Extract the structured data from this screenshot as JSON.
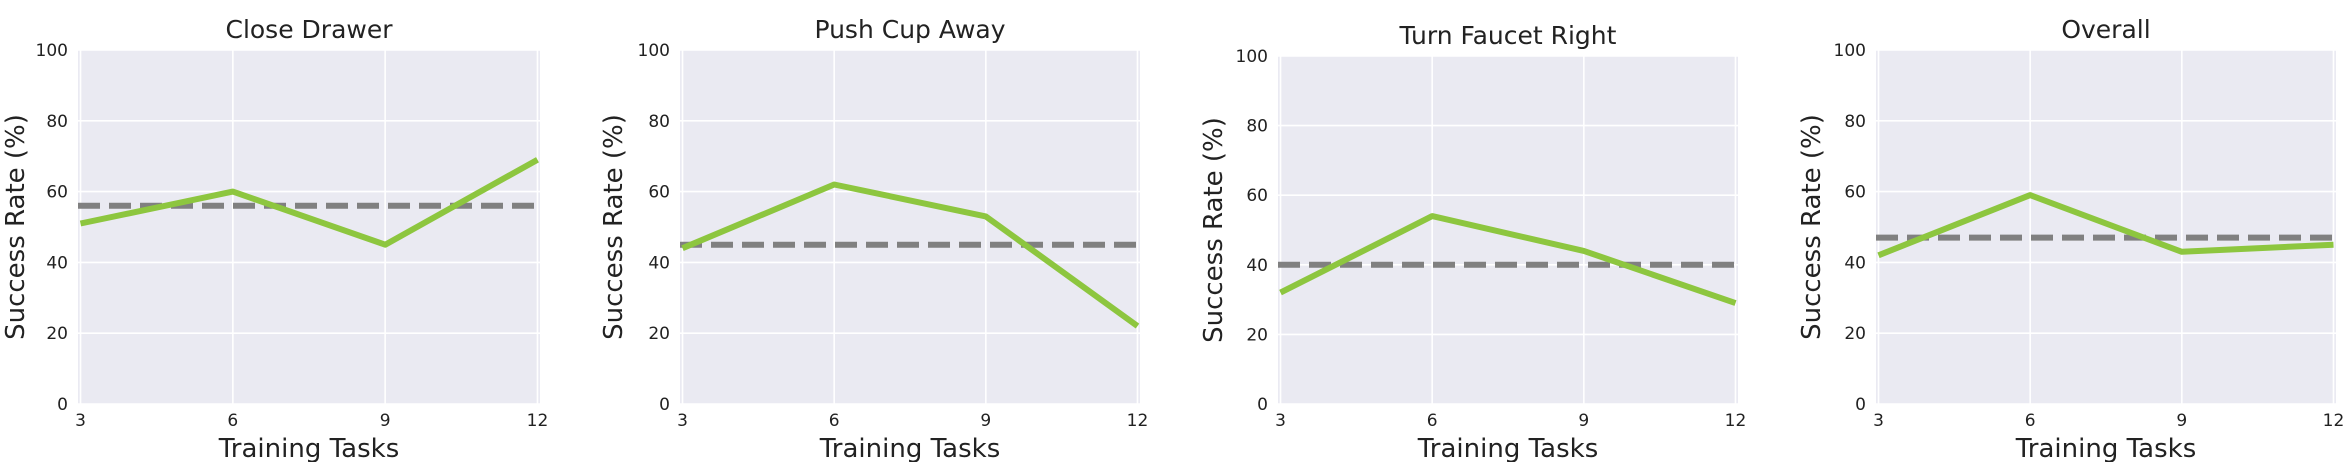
{
  "chart_data": [
    {
      "type": "line",
      "title": "Close Drawer",
      "xlabel": "Training Tasks",
      "ylabel": "Success Rate (%)",
      "x": [
        3,
        6,
        9,
        12
      ],
      "xticks": [
        "3",
        "6",
        "9",
        "12"
      ],
      "yticks": [
        "0",
        "20",
        "40",
        "60",
        "80",
        "100"
      ],
      "ylim": [
        0,
        100
      ],
      "grid": true,
      "series": [
        {
          "values": [
            51,
            60,
            45,
            69
          ],
          "color": "#8dc63f",
          "style": "solid"
        },
        {
          "values": [
            56,
            56,
            56,
            56
          ],
          "color": "#808080",
          "style": "dashed"
        }
      ]
    },
    {
      "type": "line",
      "title": "Push Cup Away",
      "xlabel": "Training Tasks",
      "ylabel": "Success Rate (%)",
      "x": [
        3,
        6,
        9,
        12
      ],
      "xticks": [
        "3",
        "6",
        "9",
        "12"
      ],
      "yticks": [
        "0",
        "20",
        "40",
        "60",
        "80",
        "100"
      ],
      "ylim": [
        0,
        100
      ],
      "grid": true,
      "series": [
        {
          "values": [
            44,
            62,
            53,
            22
          ],
          "color": "#8dc63f",
          "style": "solid"
        },
        {
          "values": [
            45,
            45,
            45,
            45
          ],
          "color": "#808080",
          "style": "dashed"
        }
      ]
    },
    {
      "type": "line",
      "title": "Turn Faucet Right",
      "xlabel": "Training Tasks",
      "ylabel": "Success Rate (%)",
      "x": [
        3,
        6,
        9,
        12
      ],
      "xticks": [
        "3",
        "6",
        "9",
        "12"
      ],
      "yticks": [
        "0",
        "20",
        "40",
        "60",
        "80",
        "100"
      ],
      "ylim": [
        0,
        100
      ],
      "grid": true,
      "series": [
        {
          "values": [
            32,
            54,
            44,
            29
          ],
          "color": "#8dc63f",
          "style": "solid"
        },
        {
          "values": [
            40,
            40,
            40,
            40
          ],
          "color": "#808080",
          "style": "dashed"
        }
      ]
    },
    {
      "type": "line",
      "title": "Overall",
      "xlabel": "Training Tasks",
      "ylabel": "Success Rate (%)",
      "x": [
        3,
        6,
        9,
        12
      ],
      "xticks": [
        "3",
        "6",
        "9",
        "12"
      ],
      "yticks": [
        "0",
        "20",
        "40",
        "60",
        "80",
        "100"
      ],
      "ylim": [
        0,
        100
      ],
      "grid": true,
      "series": [
        {
          "values": [
            42,
            59,
            43,
            45
          ],
          "color": "#8dc63f",
          "style": "solid"
        },
        {
          "values": [
            47,
            47,
            47,
            47
          ],
          "color": "#808080",
          "style": "dashed"
        }
      ]
    }
  ]
}
